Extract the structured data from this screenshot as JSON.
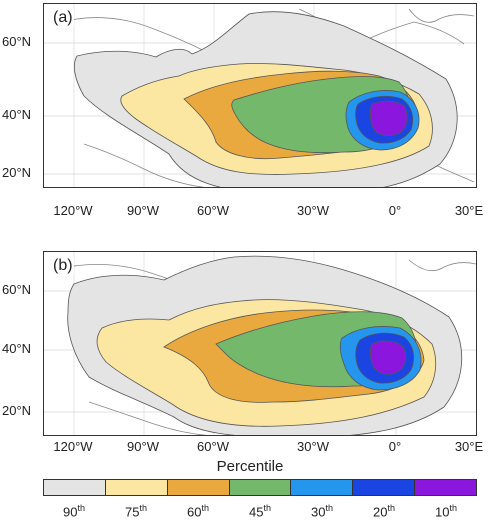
{
  "panels": [
    {
      "label": "(a)",
      "variant": "a"
    },
    {
      "label": "(b)",
      "variant": "b"
    }
  ],
  "axes": {
    "lat_ticks": [
      "60°N",
      "40°N",
      "20°N"
    ],
    "lon_ticks": [
      "120°W",
      "90°W",
      "60°W",
      "30°W",
      "0°",
      "30°E"
    ]
  },
  "colorbar": {
    "title": "Percentile",
    "bins": [
      {
        "value": "90",
        "suffix": "th",
        "color": "#e4e4e4"
      },
      {
        "value": "75",
        "suffix": "th",
        "color": "#fbe6a2"
      },
      {
        "value": "60",
        "suffix": "th",
        "color": "#e9a93f"
      },
      {
        "value": "45",
        "suffix": "th",
        "color": "#74b96b"
      },
      {
        "value": "30",
        "suffix": "th",
        "color": "#2596ee"
      },
      {
        "value": "20",
        "suffix": "th",
        "color": "#1b45e2"
      },
      {
        "value": "10",
        "suffix": "th",
        "color": "#8b16de"
      }
    ]
  }
}
